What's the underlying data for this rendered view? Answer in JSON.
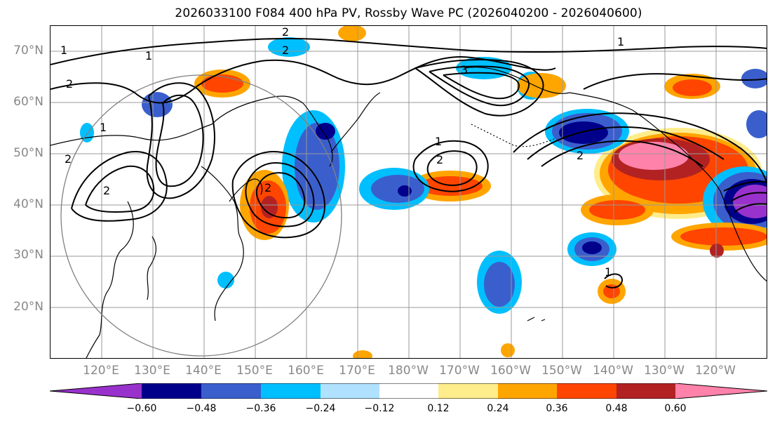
{
  "title": "2026033100 F084 400 hPa PV, Rossby Wave PC (2026040200 - 2026040600)",
  "lat_labels": [
    "70°N",
    "60°N",
    "50°N",
    "40°N",
    "30°N",
    "20°N"
  ],
  "lon_labels": [
    "120°E",
    "130°E",
    "140°E",
    "150°E",
    "160°E",
    "170°E",
    "180°W",
    "170°W",
    "160°W",
    "150°W",
    "140°W",
    "130°W",
    "120°W"
  ],
  "colorbar": {
    "colors": [
      "#9932CC",
      "#00008B",
      "#3A5FCD",
      "#00BFFF",
      "#B0E2FF",
      "#FFFFFF",
      "#FFEC8B",
      "#FFA500",
      "#FF4500",
      "#B22222",
      "#FF82AB"
    ],
    "tick_labels": [
      "−0.60",
      "−0.48",
      "−0.36",
      "−0.24",
      "−0.12",
      "0.12",
      "0.24",
      "0.36",
      "0.48",
      "0.60"
    ]
  },
  "contour_labels": [
    "1",
    "2",
    "1",
    "2",
    "2",
    "1",
    "3",
    "1",
    "2",
    "2",
    "2",
    "1",
    "2",
    "2",
    "1"
  ]
}
